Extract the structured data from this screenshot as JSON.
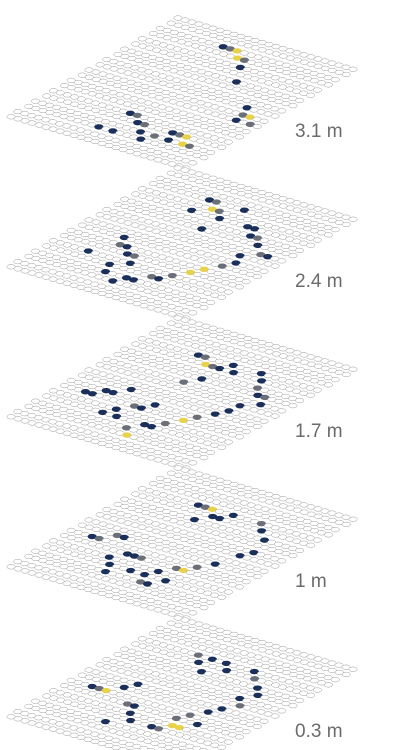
{
  "chart_data": {
    "type": "heatmap",
    "subtype": "stacked hexagonal occupancy layers",
    "title": "",
    "xlabel": "",
    "ylabel": "",
    "grid": {
      "columns": 26,
      "rows": 20
    },
    "colors": {
      "empty": "#ffffff",
      "edge": "#9a9a9a",
      "low": "#1b2f5b",
      "mid": "#6b6f78",
      "high": "#e8d24a"
    },
    "layers": [
      {
        "label": "3.1 m",
        "cells": [
          {
            "c": 9,
            "r": 2,
            "v": 1
          },
          {
            "c": 10,
            "r": 2,
            "v": 2
          },
          {
            "c": 11,
            "r": 2,
            "v": 3
          },
          {
            "c": 12,
            "r": 3,
            "v": 3
          },
          {
            "c": 13,
            "r": 3,
            "v": 2
          },
          {
            "c": 14,
            "r": 4,
            "v": 1
          },
          {
            "c": 16,
            "r": 6,
            "v": 1
          },
          {
            "c": 21,
            "r": 9,
            "v": 1
          },
          {
            "c": 22,
            "r": 10,
            "v": 2
          },
          {
            "c": 23,
            "r": 10,
            "v": 3
          },
          {
            "c": 24,
            "r": 11,
            "v": 2
          },
          {
            "c": 22,
            "r": 11,
            "v": 1
          },
          {
            "c": 18,
            "r": 15,
            "v": 1
          },
          {
            "c": 19,
            "r": 15,
            "v": 2
          },
          {
            "c": 20,
            "r": 15,
            "v": 3
          },
          {
            "c": 21,
            "r": 16,
            "v": 3
          },
          {
            "c": 22,
            "r": 16,
            "v": 2
          },
          {
            "c": 19,
            "r": 16,
            "v": 1
          },
          {
            "c": 11,
            "r": 14,
            "v": 1
          },
          {
            "c": 12,
            "r": 14,
            "v": 2
          },
          {
            "c": 13,
            "r": 15,
            "v": 1
          },
          {
            "c": 14,
            "r": 15,
            "v": 2
          },
          {
            "c": 15,
            "r": 16,
            "v": 1
          },
          {
            "c": 10,
            "r": 17,
            "v": 1
          },
          {
            "c": 12,
            "r": 17,
            "v": 1
          },
          {
            "c": 16,
            "r": 17,
            "v": 1
          },
          {
            "c": 17,
            "r": 16,
            "v": 2
          }
        ]
      },
      {
        "label": "2.4 m",
        "cells": [
          {
            "c": 8,
            "r": 3,
            "v": 1
          },
          {
            "c": 9,
            "r": 3,
            "v": 2
          },
          {
            "c": 10,
            "r": 4,
            "v": 3
          },
          {
            "c": 11,
            "r": 4,
            "v": 2
          },
          {
            "c": 12,
            "r": 5,
            "v": 1
          },
          {
            "c": 8,
            "r": 5,
            "v": 1
          },
          {
            "c": 13,
            "r": 3,
            "v": 1
          },
          {
            "c": 12,
            "r": 7,
            "v": 1
          },
          {
            "c": 16,
            "r": 5,
            "v": 1
          },
          {
            "c": 17,
            "r": 5,
            "v": 1
          },
          {
            "c": 18,
            "r": 6,
            "v": 1
          },
          {
            "c": 19,
            "r": 6,
            "v": 2
          },
          {
            "c": 20,
            "r": 7,
            "v": 1
          },
          {
            "c": 22,
            "r": 8,
            "v": 2
          },
          {
            "c": 23,
            "r": 8,
            "v": 1
          },
          {
            "c": 20,
            "r": 9,
            "v": 1
          },
          {
            "c": 21,
            "r": 10,
            "v": 1
          },
          {
            "c": 20,
            "r": 11,
            "v": 2
          },
          {
            "c": 19,
            "r": 12,
            "v": 3
          },
          {
            "c": 18,
            "r": 13,
            "v": 3
          },
          {
            "c": 17,
            "r": 14,
            "v": 2
          },
          {
            "c": 16,
            "r": 15,
            "v": 1
          },
          {
            "c": 15,
            "r": 15,
            "v": 2
          },
          {
            "c": 14,
            "r": 16,
            "v": 1
          },
          {
            "c": 13,
            "r": 16,
            "v": 1
          },
          {
            "c": 6,
            "r": 11,
            "v": 1
          },
          {
            "c": 7,
            "r": 12,
            "v": 2
          },
          {
            "c": 8,
            "r": 12,
            "v": 1
          },
          {
            "c": 9,
            "r": 13,
            "v": 1
          },
          {
            "c": 10,
            "r": 13,
            "v": 2
          },
          {
            "c": 11,
            "r": 14,
            "v": 1
          },
          {
            "c": 9,
            "r": 15,
            "v": 1
          },
          {
            "c": 10,
            "r": 16,
            "v": 1
          },
          {
            "c": 5,
            "r": 14,
            "v": 1
          },
          {
            "c": 12,
            "r": 17,
            "v": 1
          }
        ]
      },
      {
        "label": "1.7 m",
        "cells": [
          {
            "c": 8,
            "r": 4,
            "v": 1
          },
          {
            "c": 9,
            "r": 4,
            "v": 2
          },
          {
            "c": 10,
            "r": 5,
            "v": 3
          },
          {
            "c": 11,
            "r": 5,
            "v": 2
          },
          {
            "c": 12,
            "r": 5,
            "v": 1
          },
          {
            "c": 13,
            "r": 4,
            "v": 1
          },
          {
            "c": 14,
            "r": 5,
            "v": 1
          },
          {
            "c": 12,
            "r": 7,
            "v": 1
          },
          {
            "c": 11,
            "r": 8,
            "v": 2
          },
          {
            "c": 17,
            "r": 4,
            "v": 1
          },
          {
            "c": 18,
            "r": 5,
            "v": 1
          },
          {
            "c": 19,
            "r": 6,
            "v": 2
          },
          {
            "c": 20,
            "r": 7,
            "v": 1
          },
          {
            "c": 21,
            "r": 7,
            "v": 2
          },
          {
            "c": 22,
            "r": 8,
            "v": 1
          },
          {
            "c": 20,
            "r": 9,
            "v": 1
          },
          {
            "c": 20,
            "r": 10,
            "v": 1
          },
          {
            "c": 19,
            "r": 11,
            "v": 1
          },
          {
            "c": 18,
            "r": 12,
            "v": 2
          },
          {
            "c": 17,
            "r": 13,
            "v": 3
          },
          {
            "c": 16,
            "r": 14,
            "v": 2
          },
          {
            "c": 15,
            "r": 15,
            "v": 1
          },
          {
            "c": 14,
            "r": 15,
            "v": 1
          },
          {
            "c": 13,
            "r": 16,
            "v": 2
          },
          {
            "c": 14,
            "r": 17,
            "v": 3
          },
          {
            "c": 3,
            "r": 13,
            "v": 1
          },
          {
            "c": 4,
            "r": 13,
            "v": 1
          },
          {
            "c": 5,
            "r": 12,
            "v": 1
          },
          {
            "c": 6,
            "r": 12,
            "v": 1
          },
          {
            "c": 7,
            "r": 11,
            "v": 1
          },
          {
            "c": 9,
            "r": 14,
            "v": 1
          },
          {
            "c": 10,
            "r": 13,
            "v": 2
          },
          {
            "c": 11,
            "r": 13,
            "v": 1
          },
          {
            "c": 12,
            "r": 12,
            "v": 1
          },
          {
            "c": 8,
            "r": 15,
            "v": 1
          },
          {
            "c": 10,
            "r": 15,
            "v": 1
          }
        ]
      },
      {
        "label": "1 m",
        "cells": [
          {
            "c": 8,
            "r": 4,
            "v": 1
          },
          {
            "c": 9,
            "r": 4,
            "v": 2
          },
          {
            "c": 10,
            "r": 4,
            "v": 3
          },
          {
            "c": 11,
            "r": 5,
            "v": 1
          },
          {
            "c": 12,
            "r": 5,
            "v": 1
          },
          {
            "c": 13,
            "r": 4,
            "v": 1
          },
          {
            "c": 10,
            "r": 6,
            "v": 1
          },
          {
            "c": 17,
            "r": 4,
            "v": 2
          },
          {
            "c": 18,
            "r": 5,
            "v": 1
          },
          {
            "c": 20,
            "r": 6,
            "v": 1
          },
          {
            "c": 21,
            "r": 8,
            "v": 1
          },
          {
            "c": 20,
            "r": 9,
            "v": 1
          },
          {
            "c": 19,
            "r": 11,
            "v": 1
          },
          {
            "c": 18,
            "r": 12,
            "v": 2
          },
          {
            "c": 17,
            "r": 13,
            "v": 3
          },
          {
            "c": 16,
            "r": 13,
            "v": 2
          },
          {
            "c": 15,
            "r": 14,
            "v": 1
          },
          {
            "c": 14,
            "r": 15,
            "v": 1
          },
          {
            "c": 15,
            "r": 16,
            "v": 2
          },
          {
            "c": 16,
            "r": 16,
            "v": 1
          },
          {
            "c": 17,
            "r": 15,
            "v": 1
          },
          {
            "c": 3,
            "r": 12,
            "v": 1
          },
          {
            "c": 4,
            "r": 12,
            "v": 2
          },
          {
            "c": 5,
            "r": 11,
            "v": 2
          },
          {
            "c": 6,
            "r": 11,
            "v": 1
          },
          {
            "c": 9,
            "r": 13,
            "v": 1
          },
          {
            "c": 10,
            "r": 13,
            "v": 1
          },
          {
            "c": 11,
            "r": 13,
            "v": 2
          },
          {
            "c": 8,
            "r": 14,
            "v": 1
          },
          {
            "c": 9,
            "r": 15,
            "v": 1
          },
          {
            "c": 10,
            "r": 16,
            "v": 1
          },
          {
            "c": 12,
            "r": 15,
            "v": 1
          }
        ]
      },
      {
        "label": "0.3 m",
        "cells": [
          {
            "c": 8,
            "r": 4,
            "v": 2
          },
          {
            "c": 9,
            "r": 5,
            "v": 1
          },
          {
            "c": 10,
            "r": 4,
            "v": 1
          },
          {
            "c": 12,
            "r": 4,
            "v": 1
          },
          {
            "c": 13,
            "r": 5,
            "v": 1
          },
          {
            "c": 11,
            "r": 6,
            "v": 1
          },
          {
            "c": 16,
            "r": 4,
            "v": 1
          },
          {
            "c": 17,
            "r": 5,
            "v": 2
          },
          {
            "c": 19,
            "r": 6,
            "v": 1
          },
          {
            "c": 20,
            "r": 7,
            "v": 1
          },
          {
            "c": 19,
            "r": 8,
            "v": 1
          },
          {
            "c": 20,
            "r": 9,
            "v": 2
          },
          {
            "c": 19,
            "r": 10,
            "v": 1
          },
          {
            "c": 18,
            "r": 11,
            "v": 1
          },
          {
            "c": 17,
            "r": 12,
            "v": 2
          },
          {
            "c": 16,
            "r": 13,
            "v": 2
          },
          {
            "c": 17,
            "r": 14,
            "v": 3
          },
          {
            "c": 18,
            "r": 14,
            "v": 3
          },
          {
            "c": 16,
            "r": 15,
            "v": 2
          },
          {
            "c": 15,
            "r": 15,
            "v": 1
          },
          {
            "c": 19,
            "r": 13,
            "v": 1
          },
          {
            "c": 3,
            "r": 12,
            "v": 1
          },
          {
            "c": 4,
            "r": 12,
            "v": 2
          },
          {
            "c": 5,
            "r": 12,
            "v": 3
          },
          {
            "c": 6,
            "r": 11,
            "v": 1
          },
          {
            "c": 9,
            "r": 13,
            "v": 2
          },
          {
            "c": 10,
            "r": 13,
            "v": 1
          },
          {
            "c": 11,
            "r": 14,
            "v": 1
          },
          {
            "c": 7,
            "r": 10,
            "v": 1
          },
          {
            "c": 12,
            "r": 15,
            "v": 1
          },
          {
            "c": 10,
            "r": 16,
            "v": 1
          }
        ]
      }
    ]
  }
}
